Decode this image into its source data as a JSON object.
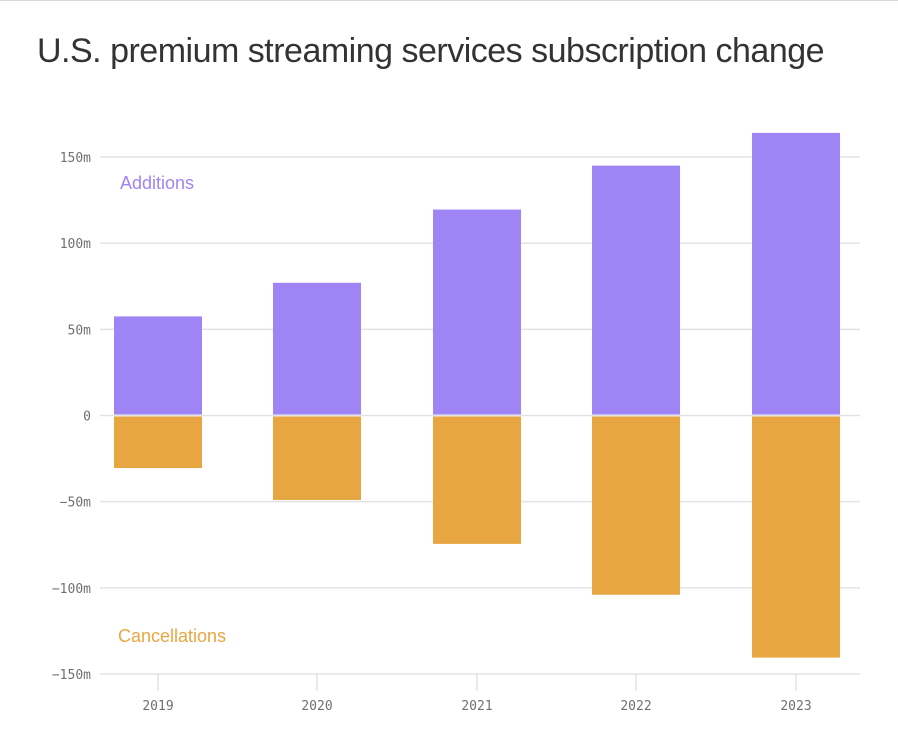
{
  "chart_data": {
    "type": "bar",
    "title": "U.S. premium streaming services subscription change",
    "xlabel": "",
    "ylabel": "",
    "categories": [
      "2019",
      "2020",
      "2021",
      "2022",
      "2023"
    ],
    "series": [
      {
        "name": "Additions",
        "color": "#9e84f5",
        "values": [
          57.5,
          77,
          119.5,
          145,
          164
        ]
      },
      {
        "name": "Cancellations",
        "color": "#e8a642",
        "values": [
          -30.5,
          -49,
          -74.5,
          -104,
          -140.5
        ]
      }
    ],
    "ylim": [
      -150,
      150
    ],
    "yticks": [
      150,
      100,
      50,
      0,
      -50,
      -100,
      -150
    ],
    "ytick_labels": [
      "150m",
      "100m",
      "50m",
      "0",
      "−50m",
      "−100m",
      "−150m"
    ],
    "grid": true,
    "legend": "inline labels: Additions top-left, Cancellations bottom-left",
    "units": "millions"
  }
}
